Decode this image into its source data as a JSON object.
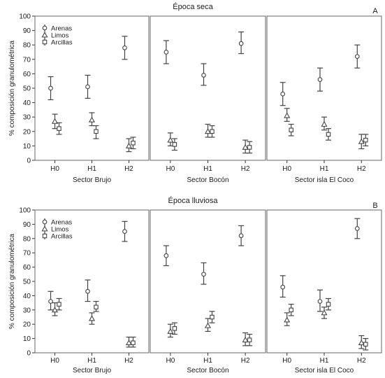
{
  "chart_data": [
    {
      "type": "scatter",
      "title": "Época seca",
      "panel_letter": "A",
      "ylabel": "% composición granulométrica",
      "ylim": [
        0,
        100
      ],
      "yticks": [
        0,
        10,
        20,
        30,
        40,
        50,
        60,
        70,
        80,
        90,
        100
      ],
      "legend": [
        "Arenas",
        "Limos",
        "Arcillas"
      ],
      "legend_position": "top-left",
      "error_bars": true,
      "panels": [
        {
          "xlabel": "Sector  Brujo",
          "categories": [
            "H0",
            "H1",
            "H2"
          ],
          "series": [
            {
              "name": "Arenas",
              "marker": "circle",
              "values": [
                50,
                51,
                78
              ],
              "err_low": [
                42,
                43,
                70
              ],
              "err_high": [
                58,
                59,
                86
              ]
            },
            {
              "name": "Limos",
              "marker": "triangle",
              "values": [
                27,
                28,
                10
              ],
              "err_low": [
                22,
                24,
                6
              ],
              "err_high": [
                32,
                33,
                15
              ]
            },
            {
              "name": "Arcillas",
              "marker": "square",
              "values": [
                22,
                20,
                12
              ],
              "err_low": [
                18,
                15,
                8
              ],
              "err_high": [
                26,
                24,
                16
              ]
            }
          ]
        },
        {
          "xlabel": "Sector  Bocón",
          "categories": [
            "H0",
            "H1",
            "H2"
          ],
          "series": [
            {
              "name": "Arenas",
              "marker": "circle",
              "values": [
                75,
                59,
                81
              ],
              "err_low": [
                67,
                52,
                74
              ],
              "err_high": [
                83,
                67,
                89
              ]
            },
            {
              "name": "Limos",
              "marker": "triangle",
              "values": [
                14,
                20,
                9
              ],
              "err_low": [
                10,
                16,
                5
              ],
              "err_high": [
                19,
                25,
                14
              ]
            },
            {
              "name": "Arcillas",
              "marker": "square",
              "values": [
                11,
                20,
                9
              ],
              "err_low": [
                7,
                16,
                5
              ],
              "err_high": [
                15,
                24,
                13
              ]
            }
          ]
        },
        {
          "xlabel": "Sector isla El Coco",
          "categories": [
            "H0",
            "H1",
            "H2"
          ],
          "series": [
            {
              "name": "Arenas",
              "marker": "circle",
              "values": [
                46,
                56,
                72
              ],
              "err_low": [
                38,
                48,
                64
              ],
              "err_high": [
                54,
                64,
                80
              ]
            },
            {
              "name": "Limos",
              "marker": "triangle",
              "values": [
                31,
                25,
                13
              ],
              "err_low": [
                27,
                21,
                8
              ],
              "err_high": [
                36,
                30,
                18
              ]
            },
            {
              "name": "Arcillas",
              "marker": "square",
              "values": [
                21,
                18,
                14
              ],
              "err_low": [
                17,
                14,
                10
              ],
              "err_high": [
                25,
                22,
                18
              ]
            }
          ]
        }
      ]
    },
    {
      "type": "scatter",
      "title": "Época lluviosa",
      "panel_letter": "B",
      "ylabel": "% composición granulométrica",
      "ylim": [
        0,
        100
      ],
      "yticks": [
        0,
        10,
        20,
        30,
        40,
        50,
        60,
        70,
        80,
        90,
        100
      ],
      "legend": [
        "Arenas",
        "Limos",
        "Arcillas"
      ],
      "legend_position": "top-left",
      "error_bars": true,
      "panels": [
        {
          "xlabel": "Sector  Brujo",
          "categories": [
            "H0",
            "H1",
            "H2"
          ],
          "series": [
            {
              "name": "Arenas",
              "marker": "circle",
              "values": [
                36,
                43,
                85
              ],
              "err_low": [
                30,
                36,
                78
              ],
              "err_high": [
                43,
                51,
                92
              ]
            },
            {
              "name": "Limos",
              "marker": "triangle",
              "values": [
                30,
                24,
                7
              ],
              "err_low": [
                26,
                20,
                4
              ],
              "err_high": [
                35,
                28,
                11
              ]
            },
            {
              "name": "Arcillas",
              "marker": "square",
              "values": [
                34,
                32,
                7
              ],
              "err_low": [
                30,
                29,
                4
              ],
              "err_high": [
                38,
                36,
                11
              ]
            }
          ]
        },
        {
          "xlabel": "Sector  Bocón",
          "categories": [
            "H0",
            "H1",
            "H2"
          ],
          "series": [
            {
              "name": "Arenas",
              "marker": "circle",
              "values": [
                68,
                55,
                82
              ],
              "err_low": [
                61,
                48,
                75
              ],
              "err_high": [
                75,
                63,
                89
              ]
            },
            {
              "name": "Limos",
              "marker": "triangle",
              "values": [
                15,
                19,
                9
              ],
              "err_low": [
                11,
                15,
                5
              ],
              "err_high": [
                20,
                24,
                14
              ]
            },
            {
              "name": "Arcillas",
              "marker": "square",
              "values": [
                17,
                25,
                9
              ],
              "err_low": [
                13,
                21,
                5
              ],
              "err_high": [
                21,
                29,
                13
              ]
            }
          ]
        },
        {
          "xlabel": "Sector isla El Coco",
          "categories": [
            "H0",
            "H1",
            "H2"
          ],
          "series": [
            {
              "name": "Arenas",
              "marker": "circle",
              "values": [
                46,
                36,
                87
              ],
              "err_low": [
                39,
                29,
                80
              ],
              "err_high": [
                54,
                44,
                94
              ]
            },
            {
              "name": "Limos",
              "marker": "triangle",
              "values": [
                23,
                28,
                7
              ],
              "err_low": [
                19,
                24,
                3
              ],
              "err_high": [
                28,
                32,
                12
              ]
            },
            {
              "name": "Arcillas",
              "marker": "square",
              "values": [
                30,
                34,
                6
              ],
              "err_low": [
                26,
                30,
                2
              ],
              "err_high": [
                34,
                38,
                10
              ]
            }
          ]
        }
      ]
    }
  ]
}
